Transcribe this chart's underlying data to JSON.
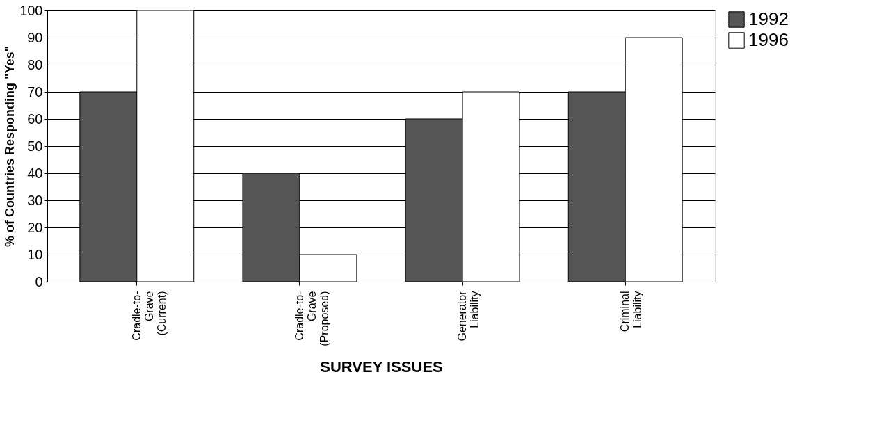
{
  "chart_data": {
    "type": "bar",
    "xlabel": "SURVEY ISSUES",
    "ylabel": "% of Countries Responding \"Yes\"",
    "categories": [
      "Cradle-to-\nGrave\n(Current)",
      "Cradle-to-\nGrave\n(Proposed)",
      "Generator\nLiability",
      "Criminal\nLiability"
    ],
    "series": [
      {
        "name": "1992",
        "color": "#555555",
        "values": [
          70,
          40,
          60,
          70
        ]
      },
      {
        "name": "1996",
        "color": "#ffffff",
        "values": [
          100,
          10,
          70,
          90
        ]
      }
    ],
    "ylim": [
      0,
      100
    ],
    "yticks": [
      0,
      10,
      20,
      30,
      40,
      50,
      60,
      70,
      80,
      90,
      100
    ],
    "grid": "y",
    "legend": "right"
  }
}
